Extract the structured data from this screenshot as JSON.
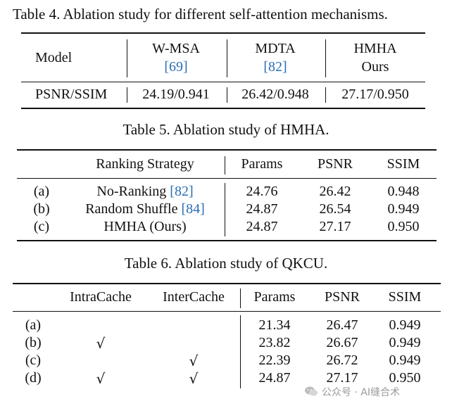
{
  "table4": {
    "caption": "Table 4. Ablation study for different self-attention mechanisms.",
    "header": {
      "model": "Model",
      "col1": {
        "name": "W-MSA",
        "cite": "[69]"
      },
      "col2": {
        "name": "MDTA",
        "cite": "[82]"
      },
      "col3": {
        "name": "HMHA",
        "sub": "Ours"
      }
    },
    "row": {
      "label": "PSNR/SSIM",
      "values": [
        "24.19/0.941",
        "26.42/0.948",
        "27.17/0.950"
      ]
    }
  },
  "table5": {
    "caption": "Table 5. Ablation study of HMHA.",
    "headers": {
      "strategy": "Ranking Strategy",
      "params": "Params",
      "psnr": "PSNR",
      "ssim": "SSIM"
    },
    "rows": [
      {
        "id": "(a)",
        "strategy": "No-Ranking ",
        "cite": "[82]",
        "params": "24.76",
        "psnr": "26.42",
        "ssim": "0.948"
      },
      {
        "id": "(b)",
        "strategy": "Random Shuffle ",
        "cite": "[84]",
        "params": "24.87",
        "psnr": "26.54",
        "ssim": "0.949"
      },
      {
        "id": "(c)",
        "strategy": "HMHA (Ours)",
        "cite": "",
        "params": "24.87",
        "psnr": "27.17",
        "ssim": "0.950"
      }
    ]
  },
  "table6": {
    "caption": "Table 6. Ablation study of QKCU.",
    "headers": {
      "intra": "IntraCache",
      "inter": "InterCache",
      "params": "Params",
      "psnr": "PSNR",
      "ssim": "SSIM"
    },
    "check_mark": "√",
    "rows": [
      {
        "id": "(a)",
        "intra": false,
        "inter": false,
        "params": "21.34",
        "psnr": "26.47",
        "ssim": "0.949"
      },
      {
        "id": "(b)",
        "intra": true,
        "inter": false,
        "params": "23.82",
        "psnr": "26.67",
        "ssim": "0.949"
      },
      {
        "id": "(c)",
        "intra": false,
        "inter": true,
        "params": "22.39",
        "psnr": "26.72",
        "ssim": "0.949"
      },
      {
        "id": "(d)",
        "intra": true,
        "inter": true,
        "params": "24.87",
        "psnr": "27.17",
        "ssim": "0.950"
      }
    ]
  },
  "watermark": {
    "text": "公众号 · AI缝合术",
    "icon": "wechat-icon"
  }
}
